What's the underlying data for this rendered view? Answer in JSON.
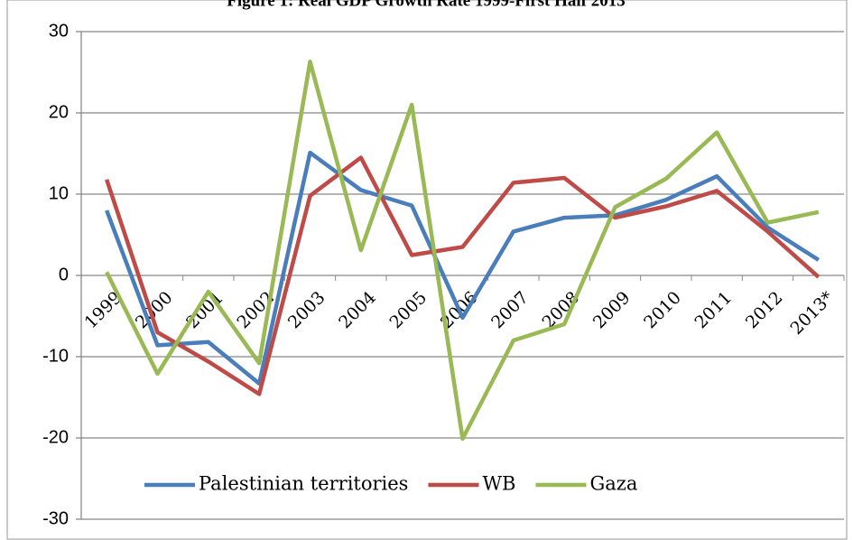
{
  "chart_data": {
    "type": "line",
    "title": "Figure 1: Real GDP Growth Rate 1999-First Half 2013",
    "categories": [
      "1999",
      "2000",
      "2001",
      "2002",
      "2003",
      "2004",
      "2005",
      "2006",
      "2007",
      "2008",
      "2009",
      "2010",
      "2011",
      "2012",
      "2013*"
    ],
    "series": [
      {
        "name": "Palestinian territories",
        "color": "#4a7ebb",
        "values": [
          8,
          -8.6,
          -8.2,
          -13.3,
          15.1,
          10.5,
          8.6,
          -5.2,
          5.4,
          7.1,
          7.4,
          9.3,
          12.2,
          5.9,
          1.9
        ]
      },
      {
        "name": "WB",
        "color": "#be4b48",
        "values": [
          11.8,
          -7,
          -10.6,
          -14.6,
          9.8,
          14.5,
          2.5,
          3.5,
          11.4,
          12,
          7.1,
          8.5,
          10.4,
          5.4,
          -0.2
        ]
      },
      {
        "name": "Gaza",
        "color": "#98b954",
        "values": [
          0.4,
          -12.1,
          -2,
          -10.8,
          26.3,
          3.1,
          21,
          -20.1,
          -8,
          -6,
          8.4,
          11.9,
          17.6,
          6.5,
          7.8
        ]
      }
    ],
    "ylim": [
      -30,
      30
    ],
    "yticks": [
      -30,
      -20,
      -10,
      0,
      10,
      20,
      30
    ],
    "grid": true,
    "legend": "bottom-left"
  }
}
